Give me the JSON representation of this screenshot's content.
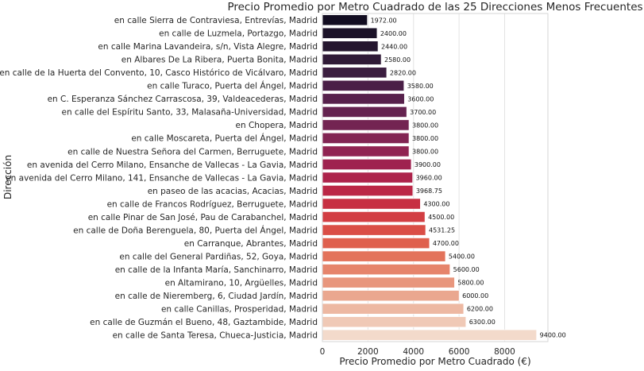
{
  "chart_data": {
    "type": "bar",
    "orientation": "horizontal",
    "title": "Precio Promedio por Metro Cuadrado de las 25 Direcciones Menos Frecuentes",
    "xlabel": "Precio Promedio por Metro Cuadrado (€)",
    "ylabel": "Dirección",
    "xlim": [
      0,
      9900
    ],
    "xticks": [
      0,
      2000,
      4000,
      6000,
      8000
    ],
    "xtick_labels": [
      "0",
      "2000",
      "4000",
      "6000",
      "8000"
    ],
    "grid": "vertical",
    "categories": [
      "en calle Sierra de Contraviesa, Entrevías, Madrid",
      "en calle de Luzmela, Portazgo, Madrid",
      "en calle Marina Lavandeira, s/n, Vista Alegre, Madrid",
      "en Albares De La Ribera, Puerta Bonita, Madrid",
      "en calle de la Huerta del Convento, 10, Casco Histórico de Vicálvaro, Madrid",
      "en calle Turaco, Puerta del Ángel, Madrid",
      "en C. Esperanza Sánchez Carrascosa, 39, Valdeacederas, Madrid",
      "en calle del Espíritu Santo, 33, Malasaña-Universidad, Madrid",
      "en Chopera, Madrid",
      "en calle Moscareta, Puerta del Ángel, Madrid",
      "en calle de Nuestra Señora del Carmen, Berruguete, Madrid",
      "en avenida del Cerro Milano, Ensanche de Vallecas - La Gavia, Madrid",
      "en avenida del Cerro Milano, 141, Ensanche de Vallecas - La Gavia, Madrid",
      "en paseo de las acacias, Acacias, Madrid",
      "en calle de Francos Rodríguez, Berruguete, Madrid",
      "en calle Pinar de San José, Pau de Carabanchel, Madrid",
      "en calle de Doña Berenguela, 80, Puerta del Ángel, Madrid",
      "en Carranque, Abrantes, Madrid",
      "en calle del General Pardiñas, 52, Goya, Madrid",
      "en calle de la Infanta María, Sanchinarro, Madrid",
      "en Altamirano, 10, Argüelles, Madrid",
      "en calle de Nieremberg, 6, Ciudad Jardín, Madrid",
      "en calle Canillas, Prosperidad, Madrid",
      "en calle de Guzmán el Bueno, 48, Gaztambide, Madrid",
      "en calle de Santa Teresa, Chueca-Justicia, Madrid"
    ],
    "values": [
      1972.0,
      2400.0,
      2440.0,
      2580.0,
      2820.0,
      3580.0,
      3600.0,
      3700.0,
      3800.0,
      3800.0,
      3800.0,
      3900.0,
      3960.0,
      3968.75,
      4300.0,
      4500.0,
      4531.25,
      4700.0,
      5400.0,
      5600.0,
      5800.0,
      6000.0,
      6200.0,
      6300.0,
      9400.0
    ],
    "value_labels": [
      "1972.00",
      "2400.00",
      "2440.00",
      "2580.00",
      "2820.00",
      "3580.00",
      "3600.00",
      "3700.00",
      "3800.00",
      "3800.00",
      "3800.00",
      "3900.00",
      "3960.00",
      "3968.75",
      "4300.00",
      "4500.00",
      "4531.25",
      "4700.00",
      "5400.00",
      "5600.00",
      "5800.00",
      "6000.00",
      "6200.00",
      "6300.00",
      "9400.00"
    ],
    "colors": [
      "#120d21",
      "#1b1228",
      "#25162f",
      "#301a37",
      "#3c1e40",
      "#4a1f47",
      "#57214c",
      "#652350",
      "#732452",
      "#822453",
      "#902352",
      "#9f224f",
      "#ad234b",
      "#bb2746",
      "#c72f42",
      "#d23e43",
      "#da4e46",
      "#df604e",
      "#e3735b",
      "#e6846b",
      "#e8967d",
      "#eaa78f",
      "#edb8a2",
      "#f0c9b6",
      "#f3dacb"
    ]
  }
}
